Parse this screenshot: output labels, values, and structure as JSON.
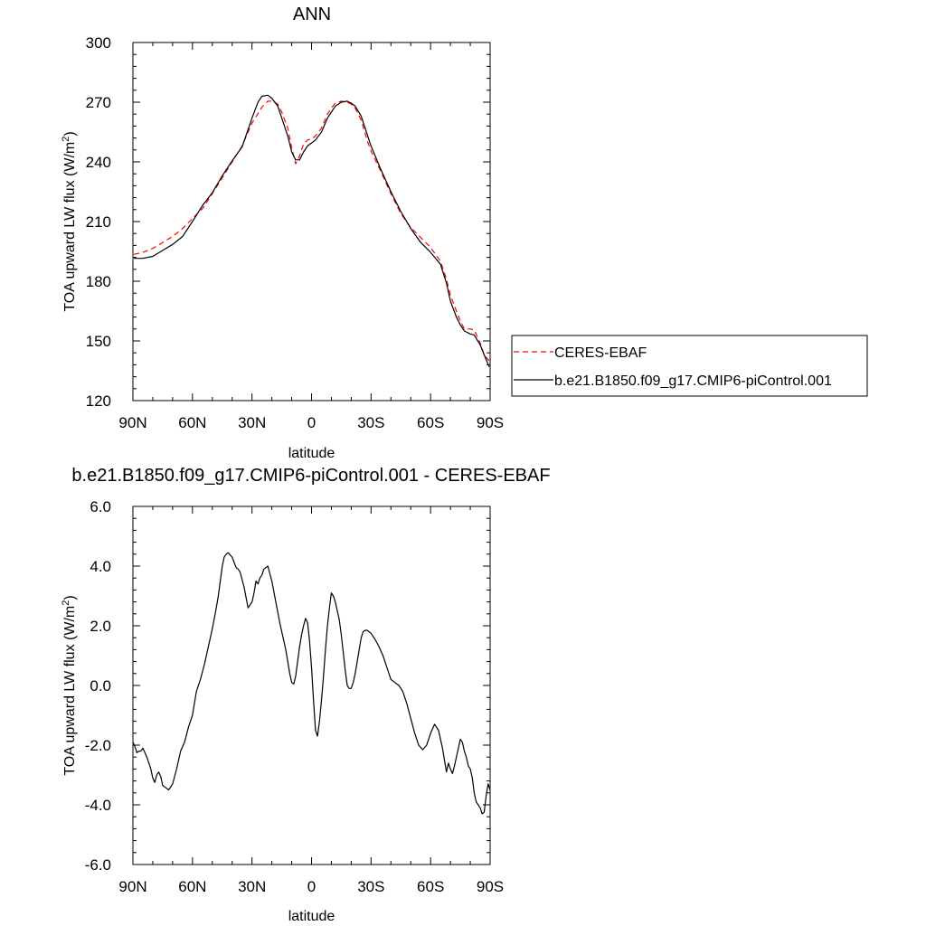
{
  "chart_data": [
    {
      "type": "line",
      "title": "ANN",
      "xlabel": "latitude",
      "ylabel_main": "TOA upward LW flux (W/m",
      "ylabel_sup": "2",
      "ylabel_close": ")",
      "xlim": [
        90,
        -90
      ],
      "ylim": [
        120,
        300
      ],
      "x_ticks": [
        90,
        60,
        30,
        0,
        -30,
        -60,
        -90
      ],
      "x_tick_labels": [
        "90N",
        "60N",
        "30N",
        "0",
        "30S",
        "60S",
        "90S"
      ],
      "y_ticks": [
        120,
        150,
        180,
        210,
        240,
        270,
        300
      ],
      "y_tick_labels": [
        "120",
        "150",
        "180",
        "210",
        "240",
        "270",
        "300"
      ],
      "legend_position": "right",
      "series": [
        {
          "name": "CERES-EBAF",
          "color": "#ff0000",
          "dash": "dashed",
          "x": [
            89.5,
            85,
            80,
            75,
            70,
            65,
            60,
            55,
            50,
            45,
            40,
            35,
            30,
            25,
            22,
            20,
            17,
            15,
            12,
            10,
            8,
            6,
            4,
            2,
            0,
            -2,
            -5,
            -8,
            -10,
            -12,
            -15,
            -18,
            -20,
            -22,
            -25,
            -28,
            -30,
            -35,
            -40,
            -45,
            -50,
            -55,
            -60,
            -65,
            -68,
            -70,
            -73,
            -75,
            -77,
            -80,
            -82,
            -85,
            -87,
            -89.5
          ],
          "y": [
            193.5,
            194.5,
            196.5,
            199.5,
            202.5,
            206.5,
            211.5,
            216.5,
            224,
            232,
            240,
            248,
            259.5,
            267.5,
            270.5,
            270.5,
            269,
            265,
            257,
            247,
            239,
            243,
            249,
            251,
            251.5,
            253,
            257,
            264,
            267,
            269.5,
            270.5,
            270,
            269,
            267,
            261,
            251,
            245.5,
            235,
            224,
            214,
            207,
            202,
            197,
            190,
            181,
            173,
            165,
            160,
            156,
            156,
            155.5,
            149,
            143,
            140
          ]
        },
        {
          "name": "b.e21.B1850.f09_g17.CMIP6-piControl.001",
          "color": "#000000",
          "dash": "solid",
          "x": [
            89.5,
            85,
            80,
            75,
            70,
            65,
            60,
            55,
            50,
            45,
            40,
            35,
            30,
            27,
            25,
            22,
            20,
            17,
            15,
            12,
            10,
            8,
            6,
            4,
            2,
            0,
            -2,
            -5,
            -8,
            -10,
            -12,
            -15,
            -18,
            -20,
            -22,
            -25,
            -28,
            -30,
            -35,
            -40,
            -45,
            -50,
            -55,
            -60,
            -65,
            -68,
            -70,
            -73,
            -75,
            -77,
            -80,
            -82,
            -85,
            -87,
            -89.5
          ],
          "y": [
            191.5,
            191.5,
            192.5,
            195.5,
            198.5,
            202.5,
            210,
            218,
            224.5,
            233,
            240.5,
            247.5,
            262,
            270,
            273,
            273.5,
            272,
            268,
            262,
            253,
            245,
            241,
            241,
            245,
            248,
            249.5,
            251,
            255,
            262,
            265,
            268,
            270,
            270.5,
            269.5,
            268,
            263,
            254,
            248,
            236,
            225,
            215,
            206.5,
            199.5,
            194.5,
            188.5,
            179,
            170,
            162,
            158,
            155,
            153.5,
            153,
            148,
            143,
            137
          ]
        }
      ]
    },
    {
      "type": "line",
      "title": "b.e21.B1850.f09_g17.CMIP6-piControl.001 - CERES-EBAF",
      "xlabel": "latitude",
      "ylabel_main": "TOA upward LW flux (W/m",
      "ylabel_sup": "2",
      "ylabel_close": ")",
      "xlim": [
        90,
        -90
      ],
      "ylim": [
        -6,
        6
      ],
      "x_ticks": [
        90,
        60,
        30,
        0,
        -30,
        -60,
        -90
      ],
      "x_tick_labels": [
        "90N",
        "60N",
        "30N",
        "0",
        "30S",
        "60S",
        "90S"
      ],
      "y_ticks": [
        -6,
        -4,
        -2,
        0,
        2,
        4,
        6
      ],
      "y_tick_labels": [
        "-6.0",
        "-4.0",
        "-2.0",
        "0.0",
        "2.0",
        "4.0",
        "6.0"
      ],
      "series": [
        {
          "color": "#000000",
          "x": [
            90,
            89,
            88,
            87,
            86,
            85,
            83,
            81,
            80,
            79,
            78,
            77,
            76,
            75,
            74,
            72,
            70,
            68,
            66,
            64,
            62,
            60,
            58,
            56,
            54,
            52,
            50,
            48,
            47,
            46,
            45,
            44,
            43,
            42,
            40,
            38,
            37,
            36,
            34,
            32,
            31,
            30,
            29,
            28,
            27,
            26,
            25,
            24,
            22,
            20,
            18,
            16,
            14,
            13,
            12,
            11,
            10,
            9,
            8,
            7,
            6,
            5,
            4,
            3,
            2,
            1,
            0,
            -1,
            -2,
            -3,
            -4,
            -5,
            -6,
            -7,
            -8,
            -9,
            -10,
            -11,
            -12,
            -13,
            -14,
            -15,
            -16,
            -17,
            -18,
            -19,
            -20,
            -21,
            -22,
            -23,
            -24,
            -25,
            -26,
            -27,
            -28,
            -29,
            -30,
            -32,
            -34,
            -36,
            -38,
            -40,
            -42,
            -44,
            -46,
            -48,
            -50,
            -52,
            -54,
            -56,
            -58,
            -60,
            -62,
            -64,
            -66,
            -67,
            -68,
            -69,
            -70,
            -71,
            -72,
            -73,
            -74,
            -75,
            -76,
            -77,
            -78,
            -79,
            -80,
            -81,
            -82,
            -83,
            -84,
            -85,
            -86,
            -87,
            -88,
            -89,
            -90
          ],
          "y": [
            -1.9,
            -2.05,
            -2.25,
            -2.2,
            -2.2,
            -2.1,
            -2.4,
            -2.8,
            -3.1,
            -3.25,
            -3.0,
            -2.9,
            -3.05,
            -3.35,
            -3.4,
            -3.5,
            -3.3,
            -2.8,
            -2.2,
            -1.9,
            -1.4,
            -1.0,
            -0.2,
            0.2,
            0.7,
            1.3,
            1.9,
            2.6,
            3.0,
            3.5,
            4.0,
            4.3,
            4.4,
            4.45,
            4.3,
            3.95,
            3.9,
            3.8,
            3.3,
            2.6,
            2.7,
            2.8,
            3.1,
            3.5,
            3.4,
            3.6,
            3.7,
            3.9,
            4.0,
            3.5,
            2.8,
            2.1,
            1.5,
            1.2,
            0.8,
            0.4,
            0.1,
            0.05,
            0.3,
            0.8,
            1.3,
            1.7,
            2.0,
            2.25,
            2.1,
            1.5,
            0.6,
            -0.5,
            -1.5,
            -1.7,
            -1.2,
            -0.5,
            0.3,
            1.2,
            2.0,
            2.6,
            3.1,
            3.0,
            2.8,
            2.5,
            2.2,
            1.7,
            1.1,
            0.5,
            0.0,
            -0.1,
            -0.1,
            0.1,
            0.4,
            0.8,
            1.2,
            1.6,
            1.8,
            1.85,
            1.85,
            1.8,
            1.75,
            1.55,
            1.3,
            1.0,
            0.6,
            0.2,
            0.1,
            0.0,
            -0.2,
            -0.6,
            -1.1,
            -1.6,
            -2.0,
            -2.15,
            -2.0,
            -1.6,
            -1.3,
            -1.5,
            -2.1,
            -2.5,
            -2.9,
            -2.6,
            -2.8,
            -2.95,
            -2.7,
            -2.4,
            -2.1,
            -1.8,
            -1.9,
            -2.2,
            -2.4,
            -2.7,
            -2.8,
            -3.1,
            -3.6,
            -3.9,
            -4.0,
            -4.1,
            -4.3,
            -4.25,
            -3.7,
            -3.3,
            -3.5
          ]
        }
      ]
    }
  ]
}
